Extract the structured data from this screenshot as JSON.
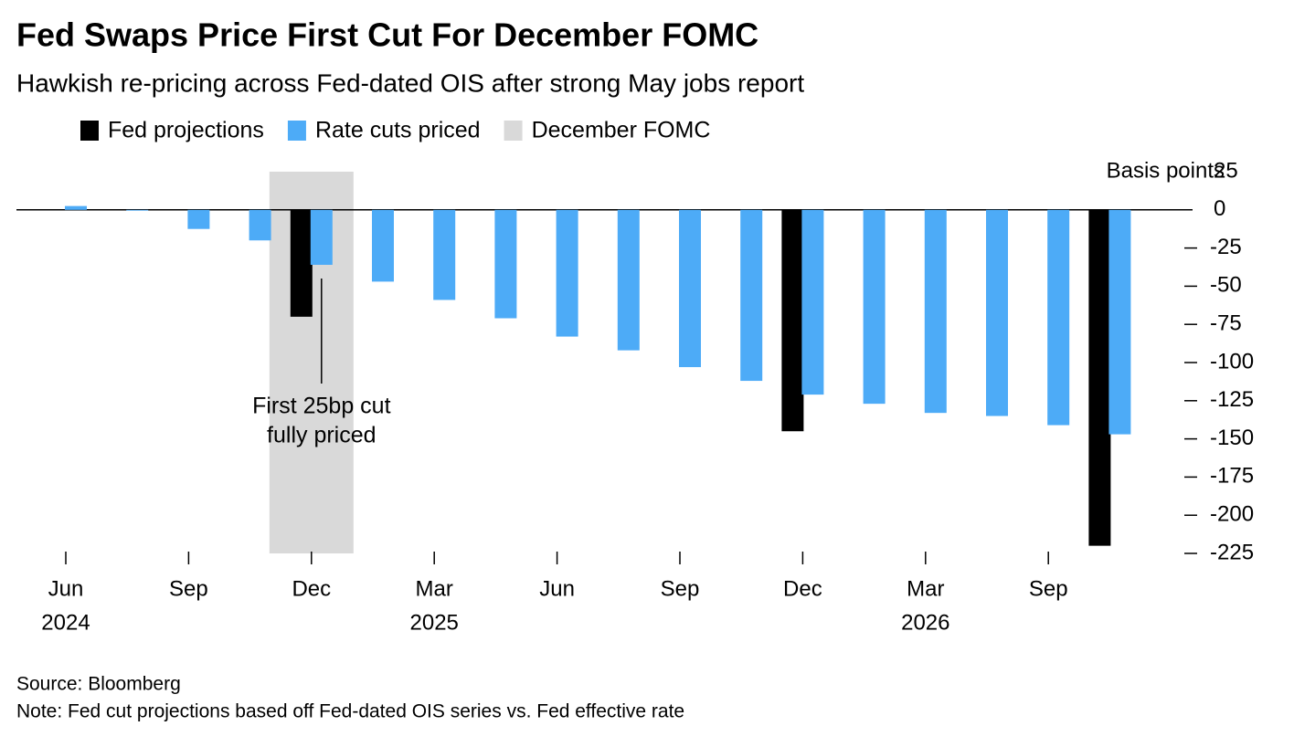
{
  "chart_data": {
    "type": "bar",
    "title": "Fed Swaps Price First Cut For December FOMC",
    "subtitle": "Hawkish re-pricing across Fed-dated OIS after strong May jobs report",
    "y_label": "Basis points",
    "categories": [
      "Jun",
      null,
      "Sep",
      null,
      "Dec",
      null,
      "Mar",
      null,
      "Jun",
      null,
      "Sep",
      null,
      "Dec",
      null,
      "Mar",
      null,
      "Sep",
      null
    ],
    "category_years": [
      "2024",
      null,
      null,
      null,
      null,
      null,
      "2025",
      null,
      null,
      null,
      null,
      null,
      null,
      null,
      "2026",
      null,
      null,
      null
    ],
    "series": [
      {
        "name": "Fed projections",
        "color": "#000000",
        "values": [
          null,
          null,
          null,
          null,
          -70,
          null,
          null,
          null,
          null,
          null,
          null,
          null,
          -145,
          null,
          null,
          null,
          null,
          -220
        ]
      },
      {
        "name": "Rate cuts priced",
        "color": "#4dabf7",
        "values": [
          2.5,
          -0.5,
          -12.5,
          -20,
          -36,
          -47,
          -59,
          -71,
          -83,
          -92,
          -103,
          -112,
          -121,
          -127,
          -133,
          -135,
          -141,
          -147
        ]
      }
    ],
    "highlight": {
      "name": "December FOMC",
      "color": "#d9d9d9",
      "category": 4
    },
    "annotation": {
      "lines": [
        "First 25bp cut",
        "fully priced"
      ],
      "category": 4
    },
    "ylim": [
      25,
      -225
    ],
    "yticks": [
      25,
      0,
      -25,
      -50,
      -75,
      -100,
      -125,
      -150,
      -175,
      -200,
      -225
    ],
    "source": "Source: Bloomberg",
    "note": "Note: Fed cut projections based off Fed-dated OIS series vs. Fed effective rate"
  }
}
